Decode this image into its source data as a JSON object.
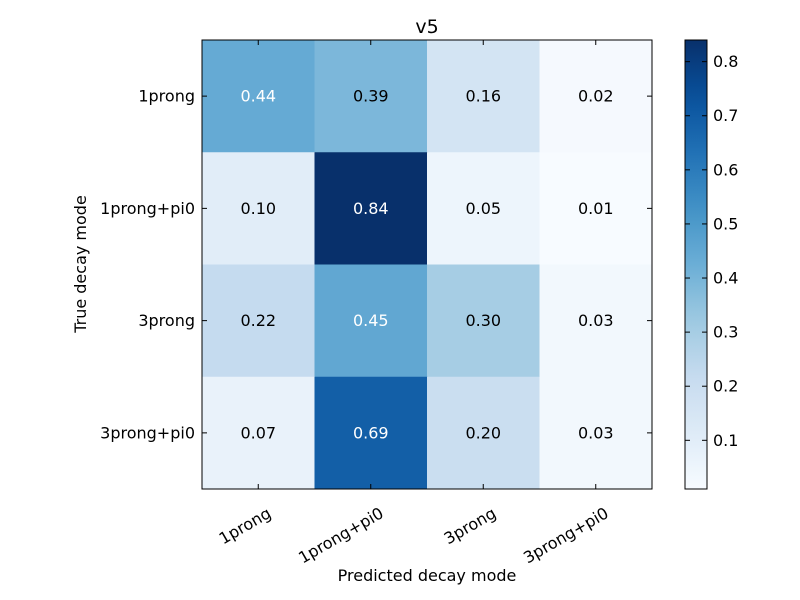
{
  "chart_data": {
    "type": "heatmap",
    "title": "v5",
    "xlabel": "Predicted decay mode",
    "ylabel": "True decay mode",
    "x_categories": [
      "1prong",
      "1prong+pi0",
      "3prong",
      "3prong+pi0"
    ],
    "y_categories": [
      "1prong",
      "1prong+pi0",
      "3prong",
      "3prong+pi0"
    ],
    "values": [
      [
        0.44,
        0.39,
        0.16,
        0.02
      ],
      [
        0.1,
        0.84,
        0.05,
        0.01
      ],
      [
        0.22,
        0.45,
        0.3,
        0.03
      ],
      [
        0.07,
        0.69,
        0.2,
        0.03
      ]
    ],
    "cell_labels": [
      [
        "0.44",
        "0.39",
        "0.16",
        "0.02"
      ],
      [
        "0.10",
        "0.84",
        "0.05",
        "0.01"
      ],
      [
        "0.22",
        "0.45",
        "0.30",
        "0.03"
      ],
      [
        "0.07",
        "0.69",
        "0.20",
        "0.03"
      ]
    ],
    "colormap": "Blues",
    "colorbar": {
      "range": [
        0.01,
        0.84
      ],
      "ticks": [
        0.1,
        0.2,
        0.3,
        0.4,
        0.5,
        0.6,
        0.7,
        0.8
      ],
      "tick_labels": [
        "0.1",
        "0.2",
        "0.3",
        "0.4",
        "0.5",
        "0.6",
        "0.7",
        "0.8"
      ]
    }
  }
}
